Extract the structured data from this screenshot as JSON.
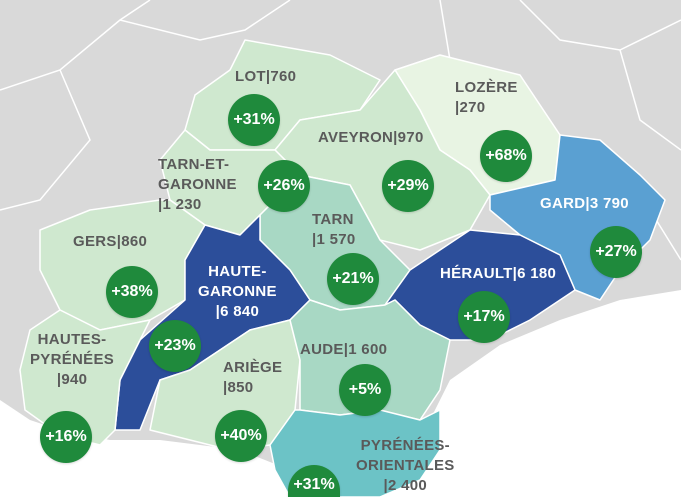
{
  "colors": {
    "outside_land": "#d9d9d9",
    "sea": "#ffffff",
    "badge": "#1f8a3c",
    "dark_blue": "#2c4e9a",
    "mid_blue": "#5aa0d2",
    "teal": "#6cc3c6",
    "light_green": "#cfe8cf",
    "pale_green": "#e8f4e3"
  },
  "departments": [
    {
      "id": "lot",
      "lines": [
        "LOT|760"
      ],
      "change": "+31%"
    },
    {
      "id": "lozere",
      "lines": [
        "LOZÈRE",
        "|270"
      ],
      "change": "+68%"
    },
    {
      "id": "aveyron",
      "lines": [
        "AVEYRON|970"
      ],
      "change": "+29%"
    },
    {
      "id": "tarn-et-garonne",
      "lines": [
        "TARN-ET-",
        "GARONNE",
        "|1 230"
      ],
      "change": "+26%"
    },
    {
      "id": "gard",
      "lines": [
        "GARD|3 790"
      ],
      "change": "+27%"
    },
    {
      "id": "tarn",
      "lines": [
        "TARN",
        "|1 570"
      ],
      "change": "+21%"
    },
    {
      "id": "gers",
      "lines": [
        "GERS|860"
      ],
      "change": "+38%"
    },
    {
      "id": "haute-garonne",
      "lines": [
        "HAUTE-",
        "GARONNE",
        "|6 840"
      ],
      "change": "+23%"
    },
    {
      "id": "herault",
      "lines": [
        "HÉRAULT|6 180"
      ],
      "change": "+17%"
    },
    {
      "id": "hautes-pyrenees",
      "lines": [
        "HAUTES-",
        "PYRÉNÉES",
        "|940"
      ],
      "change": "+16%"
    },
    {
      "id": "ariege",
      "lines": [
        "ARIÈGE",
        "|850"
      ],
      "change": "+40%"
    },
    {
      "id": "aude",
      "lines": [
        "AUDE|1 600"
      ],
      "change": "+5%"
    },
    {
      "id": "pyrenees-orientales",
      "lines": [
        "PYRÉNÉES-",
        "ORIENTALES",
        "|2 400"
      ],
      "change": "+31%"
    }
  ]
}
